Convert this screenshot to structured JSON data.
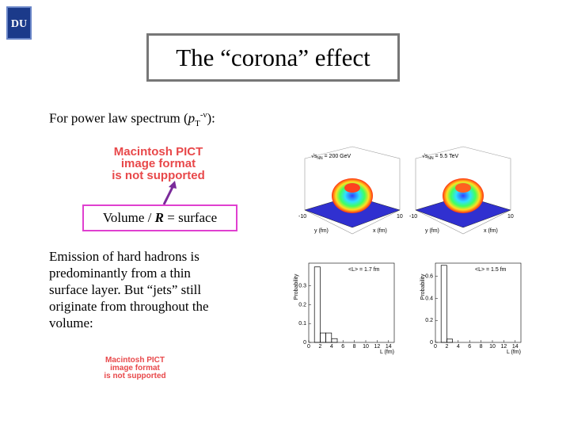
{
  "logo": "DU",
  "title": "The “corona” effect",
  "intro": {
    "text": "For power law spectrum (",
    "p": "p",
    "sub": "T",
    "sup": "-ν",
    "end": "):"
  },
  "placeholder_top": [
    "Macintosh PICT",
    "image format",
    "is not supported"
  ],
  "box": {
    "before": "Volume / ",
    "R": "R",
    "after": " = surface"
  },
  "paragraph": [
    "Emission of hard hadrons is",
    "predominantly from a thin",
    "surface layer. But “jets” still",
    "originate from throughout the",
    "volume:"
  ],
  "placeholder_bottom": [
    "Macintosh PICT",
    "image format",
    "is not supported"
  ],
  "surface_plots": [
    {
      "label": "√s",
      "label_sub": "NN",
      "label_rest": " = 200 GeV",
      "x_label": "x (fm)",
      "y_label": "y (fm)",
      "tick_min": "-10",
      "tick_max": "10"
    },
    {
      "label": "√s",
      "label_sub": "NN",
      "label_rest": " = 5.5 TeV",
      "x_label": "x (fm)",
      "y_label": "y (fm)",
      "tick_min": "-10",
      "tick_max": "10"
    }
  ],
  "histograms": [
    {
      "annotation": "<L> = 1.7 fm",
      "y_label": "Probability",
      "x_label": "L (fm)",
      "bins": [
        1,
        2,
        3,
        4,
        5
      ],
      "counts": [
        0.4,
        0.05,
        0.05,
        0.02
      ],
      "xlim": [
        0,
        15
      ],
      "ylim": [
        0,
        0.42
      ],
      "xticks": [
        0,
        2,
        4,
        6,
        8,
        10,
        12,
        14
      ],
      "yticks": [
        0,
        0.1,
        0.2,
        0.3
      ]
    },
    {
      "annotation": "<L> = 1.5 fm",
      "y_label": "Probability",
      "x_label": "L (fm)",
      "bins": [
        1,
        2,
        3
      ],
      "counts": [
        0.7,
        0.03
      ],
      "xlim": [
        0,
        15
      ],
      "ylim": [
        0,
        0.72
      ],
      "xticks": [
        0,
        2,
        4,
        6,
        8,
        10,
        12,
        14
      ],
      "yticks": [
        0,
        0.2,
        0.4,
        0.6
      ]
    }
  ]
}
